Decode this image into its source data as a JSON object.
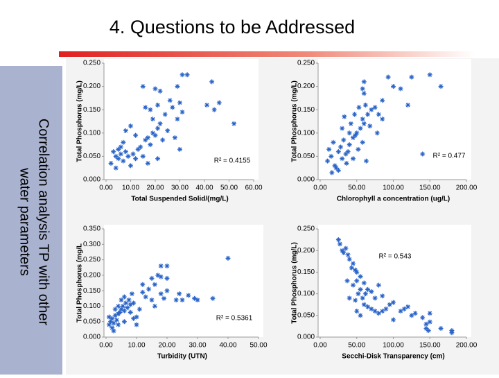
{
  "title": "4. Questions to be Addressed",
  "sidebar": [
    "Correlation analysis TP with other",
    "water parameters"
  ],
  "chart_data": [
    {
      "type": "scatter",
      "ylabel": "Total Phosphorus (mg/L)",
      "xlabel": "Total Suspended Solid/(mg/L)",
      "annotation": "R² = 0.4155",
      "color": "#2a64c8",
      "xlim": [
        0,
        60
      ],
      "ylim": [
        0,
        0.25
      ],
      "xticks": [
        {
          "value": 0,
          "label": "0.00"
        },
        {
          "value": 10,
          "label": "10.00"
        },
        {
          "value": 20,
          "label": "20.00"
        },
        {
          "value": 30,
          "label": "30.00"
        },
        {
          "value": 40,
          "label": "40.00"
        },
        {
          "value": 50,
          "label": "50.00"
        },
        {
          "value": 60,
          "label": "60.00"
        }
      ],
      "yticks": [
        {
          "value": 0,
          "label": "0.000"
        },
        {
          "value": 0.05,
          "label": "0.050"
        },
        {
          "value": 0.1,
          "label": "0.100"
        },
        {
          "value": 0.15,
          "label": "0.150"
        },
        {
          "value": 0.2,
          "label": "0.200"
        },
        {
          "value": 0.25,
          "label": "0.250"
        }
      ],
      "x": [
        3,
        4,
        5,
        6,
        7,
        8,
        2,
        5,
        9,
        10,
        4,
        6,
        11,
        12,
        13,
        7,
        14,
        15,
        16,
        18,
        17,
        19,
        20,
        21,
        22,
        19,
        23,
        25,
        24,
        18,
        16,
        21,
        26,
        27,
        30,
        31,
        29,
        20,
        22,
        15,
        29,
        31,
        33,
        43,
        41,
        44,
        46,
        52,
        30,
        21,
        12,
        10,
        28,
        8,
        17
      ],
      "values": [
        0.06,
        0.05,
        0.045,
        0.055,
        0.04,
        0.06,
        0.035,
        0.065,
        0.05,
        0.03,
        0.025,
        0.07,
        0.055,
        0.045,
        0.065,
        0.08,
        0.07,
        0.05,
        0.085,
        0.075,
        0.09,
        0.1,
        0.095,
        0.11,
        0.12,
        0.13,
        0.085,
        0.105,
        0.14,
        0.15,
        0.155,
        0.16,
        0.17,
        0.155,
        0.165,
        0.145,
        0.13,
        0.195,
        0.19,
        0.2,
        0.2,
        0.225,
        0.225,
        0.21,
        0.16,
        0.15,
        0.165,
        0.12,
        0.065,
        0.045,
        0.095,
        0.115,
        0.09,
        0.105,
        0.035
      ]
    },
    {
      "type": "scatter",
      "ylabel": "Total Phosphorus (mg/L)",
      "xlabel": "Chlorophyll a concentration (ug/L)",
      "annotation": "R² = 0.477",
      "color": "#2a64c8",
      "xlim": [
        0,
        200
      ],
      "ylim": [
        0,
        0.25
      ],
      "xticks": [
        {
          "value": 0,
          "label": "0.00"
        },
        {
          "value": 50,
          "label": "50.00"
        },
        {
          "value": 100,
          "label": "100.00"
        },
        {
          "value": 150,
          "label": "150.00"
        },
        {
          "value": 200,
          "label": "200.00"
        }
      ],
      "yticks": [
        {
          "value": 0,
          "label": "0.000"
        },
        {
          "value": 0.05,
          "label": "0.050"
        },
        {
          "value": 0.1,
          "label": "0.100"
        },
        {
          "value": 0.15,
          "label": "0.150"
        },
        {
          "value": 0.2,
          "label": "0.200"
        },
        {
          "value": 0.25,
          "label": "0.250"
        }
      ],
      "x": [
        10,
        15,
        20,
        25,
        30,
        35,
        12,
        18,
        22,
        28,
        32,
        38,
        40,
        45,
        50,
        55,
        42,
        48,
        58,
        60,
        65,
        70,
        62,
        75,
        80,
        68,
        85,
        58,
        52,
        45,
        36,
        25,
        16,
        40,
        30,
        47,
        53,
        85,
        100,
        110,
        93,
        125,
        150,
        165,
        60,
        60,
        58,
        33,
        120,
        63,
        140,
        78
      ],
      "values": [
        0.04,
        0.05,
        0.03,
        0.06,
        0.045,
        0.055,
        0.065,
        0.08,
        0.025,
        0.07,
        0.085,
        0.06,
        0.075,
        0.09,
        0.1,
        0.11,
        0.12,
        0.095,
        0.13,
        0.12,
        0.14,
        0.15,
        0.16,
        0.155,
        0.14,
        0.115,
        0.13,
        0.08,
        0.065,
        0.045,
        0.035,
        0.02,
        0.015,
        0.1,
        0.11,
        0.14,
        0.155,
        0.17,
        0.2,
        0.195,
        0.22,
        0.22,
        0.225,
        0.2,
        0.21,
        0.185,
        0.195,
        0.135,
        0.16,
        0.04,
        0.055,
        0.1
      ]
    },
    {
      "type": "scatter",
      "ylabel": "Total Phosphorus (mg/L",
      "xlabel": "Turbidity (UTN)",
      "annotation": "R² = 0.5361",
      "color": "#2a64c8",
      "xlim": [
        0,
        50
      ],
      "ylim": [
        0,
        0.35
      ],
      "xticks": [
        {
          "value": 0,
          "label": "0.00"
        },
        {
          "value": 10,
          "label": "10.00"
        },
        {
          "value": 20,
          "label": "20.00"
        },
        {
          "value": 30,
          "label": "30.00"
        },
        {
          "value": 40,
          "label": "40.00"
        },
        {
          "value": 50,
          "label": "50.00"
        }
      ],
      "yticks": [
        {
          "value": 0,
          "label": "0.000"
        },
        {
          "value": 0.05,
          "label": "0.050"
        },
        {
          "value": 0.1,
          "label": "0.100"
        },
        {
          "value": 0.15,
          "label": "0.150"
        },
        {
          "value": 0.2,
          "label": "0.200"
        },
        {
          "value": 0.25,
          "label": "0.250"
        },
        {
          "value": 0.3,
          "label": "0.300"
        },
        {
          "value": 0.35,
          "label": "0.350"
        }
      ],
      "x": [
        1,
        1.5,
        2,
        2.5,
        3,
        1,
        2,
        3.5,
        4,
        4.5,
        5,
        5.5,
        6,
        6.5,
        7,
        7.5,
        8,
        5,
        6,
        4,
        3,
        8.5,
        9,
        10,
        11,
        12,
        13,
        12,
        15,
        16,
        18,
        20,
        19,
        23,
        15,
        18,
        20,
        17,
        16,
        14,
        8,
        6,
        9,
        25,
        27,
        29,
        24,
        30,
        35,
        40,
        18,
        20,
        2.5,
        4,
        10
      ],
      "values": [
        0.04,
        0.05,
        0.06,
        0.045,
        0.07,
        0.065,
        0.03,
        0.055,
        0.075,
        0.08,
        0.09,
        0.1,
        0.085,
        0.11,
        0.095,
        0.12,
        0.105,
        0.12,
        0.13,
        0.1,
        0.09,
        0.14,
        0.11,
        0.065,
        0.09,
        0.17,
        0.13,
        0.145,
        0.12,
        0.1,
        0.14,
        0.15,
        0.125,
        0.12,
        0.19,
        0.195,
        0.19,
        0.2,
        0.17,
        0.155,
        0.08,
        0.05,
        0.06,
        0.12,
        0.135,
        0.125,
        0.14,
        0.12,
        0.125,
        0.255,
        0.23,
        0.23,
        0.02,
        0.04,
        0.04
      ]
    },
    {
      "type": "scatter",
      "ylabel": "Total Phosphorus (mg/L)",
      "xlabel": "Secchi-Disk Transparency (cm)",
      "annotation": "R² = 0.543",
      "color": "#2a64c8",
      "xlim": [
        0,
        200
      ],
      "ylim": [
        0,
        0.25
      ],
      "xticks": [
        {
          "value": 0,
          "label": "0.00"
        },
        {
          "value": 50,
          "label": "50.00"
        },
        {
          "value": 100,
          "label": "100.00"
        },
        {
          "value": 150,
          "label": "150.00"
        },
        {
          "value": 200,
          "label": "200.00"
        }
      ],
      "yticks": [
        {
          "value": 0,
          "label": "0.000"
        },
        {
          "value": 0.05,
          "label": "0.050"
        },
        {
          "value": 0.1,
          "label": "0.100"
        },
        {
          "value": 0.15,
          "label": "0.150"
        },
        {
          "value": 0.2,
          "label": "0.200"
        },
        {
          "value": 0.25,
          "label": "0.250"
        }
      ],
      "x": [
        25,
        27,
        30,
        32,
        35,
        38,
        40,
        43,
        45,
        48,
        50,
        55,
        45,
        50,
        55,
        60,
        52,
        58,
        62,
        65,
        70,
        75,
        80,
        85,
        60,
        65,
        70,
        75,
        80,
        50,
        55,
        85,
        90,
        95,
        100,
        110,
        115,
        120,
        125,
        130,
        140,
        145,
        150,
        150,
        145,
        165,
        148,
        180,
        180,
        100,
        48,
        40,
        37
      ],
      "values": [
        0.225,
        0.215,
        0.2,
        0.195,
        0.205,
        0.19,
        0.18,
        0.16,
        0.17,
        0.155,
        0.15,
        0.14,
        0.12,
        0.13,
        0.11,
        0.125,
        0.1,
        0.09,
        0.1,
        0.11,
        0.105,
        0.09,
        0.12,
        0.095,
        0.075,
        0.07,
        0.065,
        0.06,
        0.055,
        0.06,
        0.05,
        0.06,
        0.065,
        0.075,
        0.08,
        0.06,
        0.065,
        0.07,
        0.05,
        0.055,
        0.045,
        0.03,
        0.055,
        0.035,
        0.02,
        0.02,
        0.015,
        0.01,
        0.015,
        0.04,
        0.085,
        0.09,
        0.13
      ]
    }
  ]
}
